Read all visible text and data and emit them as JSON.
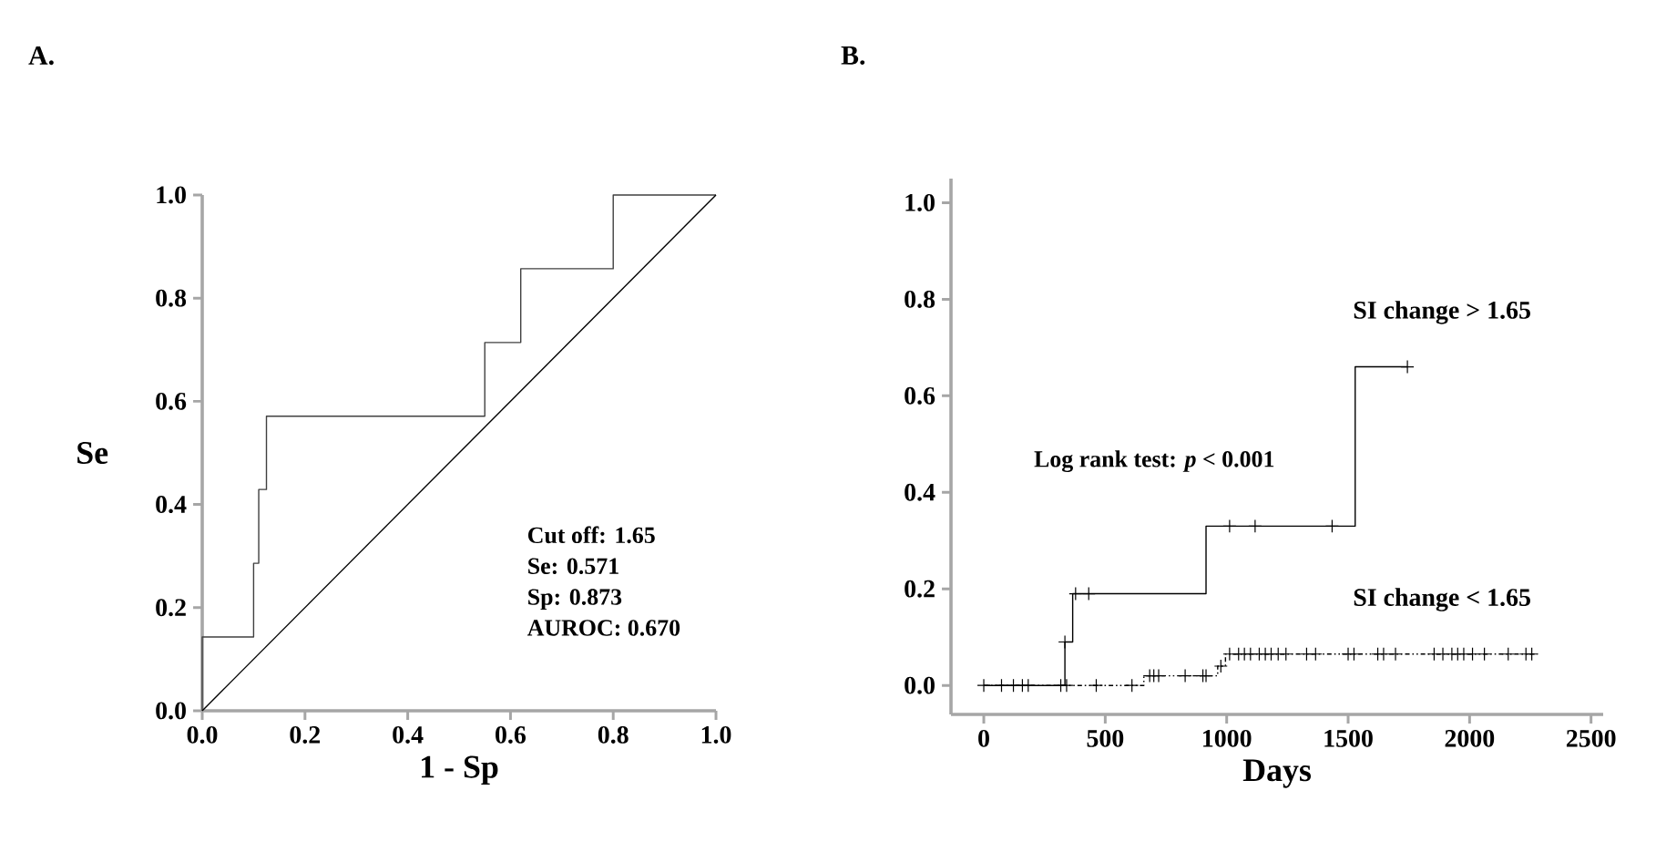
{
  "chart_data": [
    {
      "type": "step",
      "title": "A.",
      "xlabel": "1 - Sp",
      "ylabel": "Se",
      "xlim": [
        0,
        1
      ],
      "ylim": [
        0,
        1
      ],
      "xticks": [
        {
          "value": 0,
          "label": "0.0"
        },
        {
          "value": 0.2,
          "label": "0.2"
        },
        {
          "value": 0.4,
          "label": "0.4"
        },
        {
          "value": 0.6,
          "label": "0.6"
        },
        {
          "value": 0.8,
          "label": "0.8"
        },
        {
          "value": 1,
          "label": "1.0"
        }
      ],
      "yticks": [
        {
          "value": 0,
          "label": "0.0"
        },
        {
          "value": 0.2,
          "label": "0.2"
        },
        {
          "value": 0.4,
          "label": "0.4"
        },
        {
          "value": 0.6,
          "label": "0.6"
        },
        {
          "value": 0.8,
          "label": "0.8"
        },
        {
          "value": 1,
          "label": "1.0"
        }
      ],
      "series": [
        {
          "color": "#404040",
          "x": [
            0,
            0,
            0.1,
            0.11,
            0.125,
            0.55,
            0.62,
            0.8,
            1
          ],
          "values": [
            0,
            0.143,
            0.286,
            0.429,
            0.571,
            0.714,
            0.857,
            1,
            1
          ]
        },
        {
          "type": "line",
          "color": "#000000",
          "x": [
            0,
            1
          ],
          "values": [
            0,
            1
          ]
        }
      ],
      "annotations": [
        "Cut off: 1.65",
        "Se: 0.571",
        "Sp: 0.873",
        "AUROC: 0.670"
      ]
    },
    {
      "type": "step",
      "title": "B.",
      "xlabel": "Days",
      "xlim": [
        -135,
        2550
      ],
      "ylim": [
        -0.06,
        1.05
      ],
      "xticks": [
        0,
        500,
        1000,
        1500,
        2000,
        2500
      ],
      "yticks": [
        {
          "value": 0,
          "label": "0.0"
        },
        {
          "value": 0.2,
          "label": "0.2"
        },
        {
          "value": 0.4,
          "label": "0.4"
        },
        {
          "value": 0.6,
          "label": "0.6"
        },
        {
          "value": 0.8,
          "label": "0.8"
        },
        {
          "value": 1,
          "label": "1.0"
        }
      ],
      "series": [
        {
          "name": "SI change > 1.65",
          "color": "#000000",
          "x": [
            0,
            334,
            366,
            915,
            1529,
            1744
          ],
          "values": [
            0,
            0.09,
            0.19,
            0.33,
            0.66,
            0.66
          ]
        },
        {
          "name": "SI change < 1.65",
          "color": "#000000",
          "line_style": "dotted",
          "x": [
            0,
            659,
            963,
            995,
            2280
          ],
          "values": [
            0,
            0.02,
            0.04,
            0.065,
            0.065
          ]
        },
        {
          "type": "scatter",
          "marker": "cross",
          "color": "#000000",
          "x": [
            334,
            378,
            432,
            1012,
            1117,
            1434,
            1744
          ],
          "values": [
            0.09,
            0.19,
            0.19,
            0.33,
            0.33,
            0.33,
            0.66
          ]
        },
        {
          "type": "scatter",
          "marker": "cross",
          "color": "#000000",
          "x": [
            0,
            73,
            122,
            159,
            183,
            317,
            341,
            463,
            610,
            683,
            700,
            720,
            829,
            902,
            915,
            976,
            1012,
            1049,
            1073,
            1098,
            1134,
            1159,
            1183,
            1212,
            1244,
            1329,
            1366,
            1500,
            1524,
            1622,
            1646,
            1695,
            1854,
            1890,
            1927,
            1951,
            1976,
            2012,
            2061,
            2159,
            2232,
            2256
          ],
          "values": [
            0,
            0,
            0,
            0,
            0,
            0,
            0,
            0,
            0,
            0.02,
            0.02,
            0.02,
            0.02,
            0.02,
            0.02,
            0.04,
            0.065,
            0.065,
            0.065,
            0.065,
            0.065,
            0.065,
            0.065,
            0.065,
            0.065,
            0.065,
            0.065,
            0.065,
            0.065,
            0.065,
            0.065,
            0.065,
            0.065,
            0.065,
            0.065,
            0.065,
            0.065,
            0.065,
            0.065,
            0.065,
            0.065,
            0.065
          ]
        }
      ],
      "annotations": [
        "Log rank test: *p* < 0.001"
      ]
    }
  ]
}
